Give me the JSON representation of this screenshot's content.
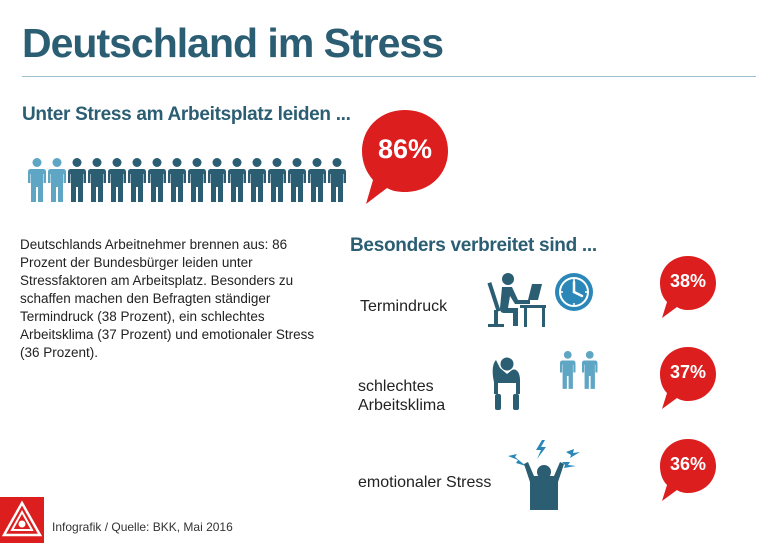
{
  "title": "Deutschland im Stress",
  "subtitle_main": "Unter Stress am Arbeitsplatz leiden ...",
  "main_stat": {
    "label": "86%",
    "value": 86,
    "icons_total": 16,
    "icons_light": 2
  },
  "body_text": "Deutschlands Arbeitnehmer brennen aus: 86 Prozent der Bundesbürger leiden unter Stressfaktoren am Arbeitsplatz. Besonders zu schaffen machen den Befragten ständiger Termindruck (38 Prozent), ein schlechtes Arbeitsklima (37 Prozent) und emotionaler Stress (36 Prozent).",
  "subtitle_categories": "Besonders verbreitet sind ...",
  "chart_data": {
    "type": "bar",
    "title": "Deutschland im Stress",
    "categories": [
      "Termindruck",
      "schlechtes Arbeitsklima",
      "emotionaler Stress"
    ],
    "values": [
      38,
      37,
      36
    ],
    "value_labels": [
      "38%",
      "37%",
      "36%"
    ],
    "overall": {
      "label": "Unter Stress am Arbeitsplatz leiden ...",
      "value": 86,
      "value_label": "86%"
    }
  },
  "category_labels": {
    "termindruck": "Termindruck",
    "arbeitsklima_line1": "schlechtes",
    "arbeitsklima_line2": "Arbeitsklima",
    "emotional": "emotionaler Stress"
  },
  "icons": {
    "person": "person-icon",
    "desk": "desk-worker-icon",
    "clock": "clock-icon",
    "slumped": "slumped-person-icon",
    "pair": "two-people-icon",
    "angry": "stressed-person-icon",
    "logo": "ig-metall-logo"
  },
  "colors": {
    "title": "#2b5d73",
    "dark_person": "#2b5d73",
    "light_person": "#5fa6c4",
    "bubble": "#dc1e1e",
    "clock": "#2b87b8",
    "lightning": "#2b87b8"
  },
  "source": "Infografik / Quelle: BKK, Mai 2016"
}
